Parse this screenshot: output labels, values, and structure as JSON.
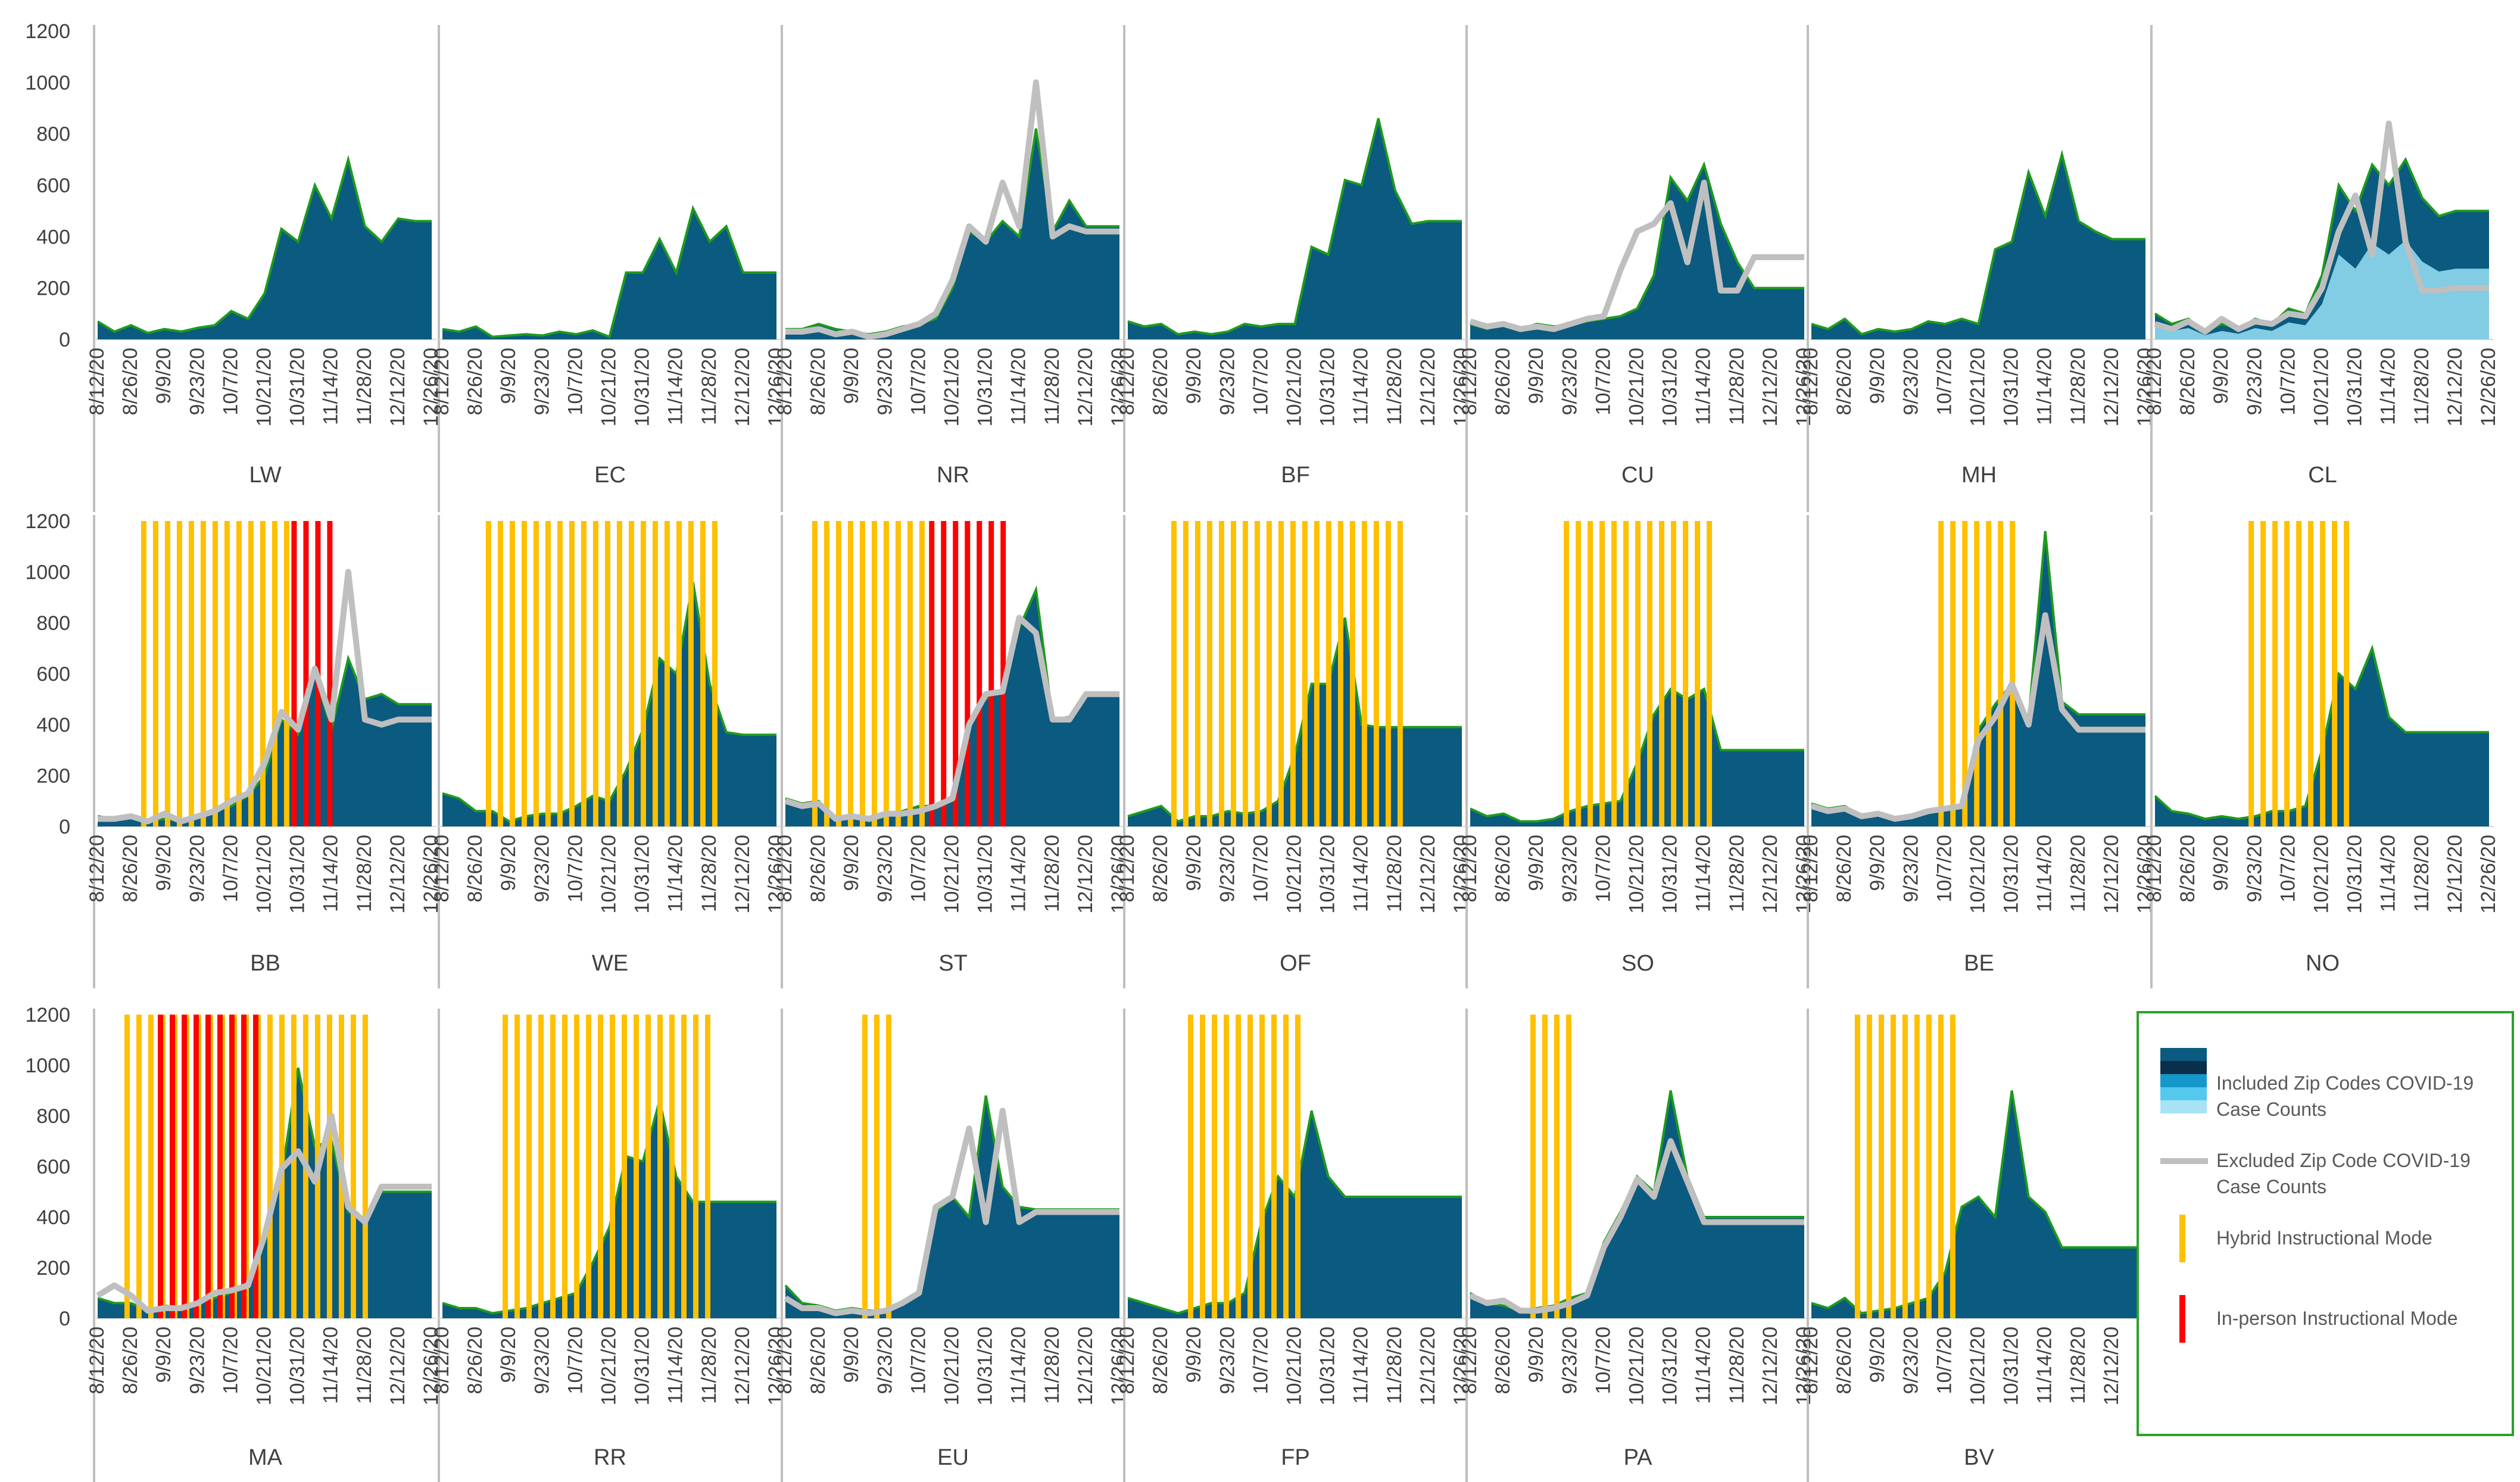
{
  "chart_data": {
    "type": "area",
    "title": "",
    "y_axis": {
      "ticks": [
        0,
        200,
        400,
        600,
        800,
        1000,
        1200
      ],
      "ylim": [
        0,
        1200
      ]
    },
    "x_axis": {
      "tick_labels": [
        "8/12/20",
        "8/26/20",
        "9/9/20",
        "9/23/20",
        "10/7/20",
        "10/21/20",
        "10/31/20",
        "11/14/20",
        "11/28/20",
        "12/12/20",
        "12/26/20"
      ]
    },
    "n_points": 21,
    "colors": {
      "included_area": "#0b5a7f",
      "included_outline": "#1e9a1e",
      "excluded_line": "#bfbfbf",
      "hybrid_mode": "#ffc000",
      "inperson_mode": "#ff0000",
      "cl_light_area": "#8fd8ef",
      "legend_border": "#2ca02c",
      "gridline_divider": "#bfbfbf"
    },
    "legend": {
      "position": "right",
      "entries": [
        {
          "key": "included",
          "label": "Included Zip Codes COVID-19 Case Counts"
        },
        {
          "key": "excluded",
          "label": "Excluded Zip Code COVID-19 Case Counts"
        },
        {
          "key": "hybrid",
          "label": "Hybrid Instructional Mode"
        },
        {
          "key": "inperson",
          "label": "In-person Instructional Mode"
        }
      ]
    },
    "panels": [
      {
        "label": "LW",
        "included": [
          70,
          30,
          55,
          25,
          40,
          30,
          45,
          55,
          110,
          80,
          180,
          430,
          380,
          600,
          470,
          700,
          440,
          380,
          470,
          460,
          460
        ],
        "excluded": null,
        "hybrid": null,
        "inperson": null
      },
      {
        "label": "EC",
        "included": [
          40,
          30,
          50,
          10,
          15,
          20,
          15,
          30,
          20,
          35,
          10,
          260,
          260,
          390,
          260,
          510,
          380,
          440,
          260,
          260,
          260
        ],
        "excluded": null,
        "hybrid": null,
        "inperson": null
      },
      {
        "label": "NR",
        "included": [
          40,
          40,
          60,
          40,
          30,
          20,
          30,
          50,
          60,
          80,
          200,
          420,
          380,
          460,
          400,
          820,
          420,
          540,
          440,
          440,
          440
        ],
        "excluded": [
          30,
          30,
          40,
          20,
          30,
          10,
          20,
          40,
          60,
          100,
          230,
          440,
          380,
          610,
          440,
          1000,
          400,
          440,
          420,
          420,
          420
        ],
        "hybrid": null,
        "inperson": null
      },
      {
        "label": "BF",
        "included": [
          70,
          50,
          60,
          20,
          30,
          20,
          30,
          60,
          50,
          60,
          60,
          360,
          330,
          620,
          600,
          860,
          580,
          450,
          460,
          460,
          460
        ],
        "excluded": null,
        "hybrid": null,
        "inperson": null
      },
      {
        "label": "CU",
        "included": [
          60,
          40,
          60,
          40,
          60,
          50,
          60,
          70,
          80,
          90,
          120,
          250,
          630,
          540,
          680,
          450,
          300,
          200,
          200,
          200,
          200
        ],
        "excluded": [
          70,
          50,
          60,
          40,
          50,
          40,
          60,
          80,
          90,
          270,
          420,
          450,
          530,
          300,
          610,
          190,
          190,
          320,
          320,
          320,
          320
        ],
        "hybrid": null,
        "inperson": null
      },
      {
        "label": "MH",
        "included": [
          60,
          40,
          80,
          20,
          40,
          30,
          40,
          70,
          60,
          80,
          60,
          350,
          380,
          650,
          480,
          720,
          460,
          420,
          390,
          390,
          390
        ],
        "excluded": null,
        "hybrid": null,
        "inperson": null
      },
      {
        "label": "CL",
        "included": [
          100,
          60,
          80,
          30,
          60,
          40,
          80,
          60,
          120,
          100,
          250,
          600,
          500,
          680,
          600,
          700,
          550,
          480,
          500,
          500,
          500
        ],
        "excluded": [
          60,
          40,
          70,
          30,
          80,
          40,
          70,
          60,
          100,
          90,
          200,
          420,
          560,
          330,
          840,
          380,
          190,
          190,
          200,
          200,
          200
        ],
        "hybrid": null,
        "inperson": null
      },
      {
        "label": "BB",
        "included": [
          40,
          30,
          40,
          20,
          30,
          20,
          40,
          60,
          80,
          120,
          200,
          420,
          360,
          600,
          380,
          660,
          500,
          520,
          480,
          480,
          480
        ],
        "excluded": [
          30,
          30,
          40,
          20,
          50,
          20,
          40,
          60,
          100,
          130,
          250,
          450,
          380,
          620,
          420,
          1000,
          420,
          400,
          420,
          420,
          420
        ],
        "hybrid": [
          3,
          11
        ],
        "inperson": [
          12,
          14
        ]
      },
      {
        "label": "WE",
        "included": [
          130,
          110,
          60,
          60,
          20,
          40,
          50,
          50,
          80,
          120,
          100,
          220,
          380,
          660,
          600,
          960,
          560,
          370,
          360,
          360,
          360
        ],
        "excluded": null,
        "hybrid": [
          3,
          16
        ],
        "inperson": null
      },
      {
        "label": "ST",
        "included": [
          110,
          90,
          100,
          30,
          40,
          20,
          40,
          60,
          80,
          80,
          120,
          420,
          500,
          540,
          780,
          930,
          420,
          430,
          520,
          520,
          520
        ],
        "excluded": [
          100,
          80,
          90,
          30,
          40,
          30,
          50,
          50,
          60,
          80,
          110,
          400,
          520,
          530,
          820,
          760,
          420,
          420,
          520,
          520,
          520
        ],
        "hybrid": [
          2,
          8
        ],
        "inperson": [
          9,
          13
        ]
      },
      {
        "label": "OF",
        "included": [
          40,
          60,
          80,
          20,
          40,
          40,
          60,
          50,
          60,
          100,
          280,
          560,
          560,
          820,
          400,
          390,
          390,
          390,
          390,
          390,
          390
        ],
        "excluded": null,
        "hybrid": [
          3,
          16
        ],
        "inperson": null
      },
      {
        "label": "SO",
        "included": [
          70,
          40,
          50,
          20,
          20,
          30,
          60,
          80,
          90,
          100,
          250,
          440,
          540,
          500,
          540,
          300,
          300,
          300,
          300,
          300,
          300
        ],
        "excluded": null,
        "hybrid": [
          6,
          14
        ],
        "inperson": null
      },
      {
        "label": "BE",
        "included": [
          90,
          70,
          80,
          40,
          50,
          30,
          40,
          60,
          70,
          80,
          380,
          480,
          560,
          420,
          1160,
          490,
          440,
          440,
          440,
          440,
          440
        ],
        "excluded": [
          80,
          60,
          70,
          40,
          50,
          30,
          40,
          60,
          70,
          80,
          340,
          430,
          560,
          400,
          830,
          460,
          380,
          380,
          380,
          380,
          380
        ],
        "hybrid": [
          8,
          12
        ],
        "inperson": null
      },
      {
        "label": "NO",
        "included": [
          120,
          60,
          50,
          30,
          40,
          30,
          40,
          60,
          60,
          80,
          300,
          600,
          540,
          700,
          430,
          370,
          370,
          370,
          370,
          370,
          370
        ],
        "excluded": null,
        "hybrid": [
          6,
          11
        ],
        "inperson": null
      },
      {
        "label": "MA",
        "included": [
          80,
          60,
          60,
          30,
          50,
          40,
          60,
          80,
          100,
          130,
          300,
          560,
          990,
          680,
          700,
          420,
          390,
          500,
          500,
          500,
          500
        ],
        "excluded": [
          90,
          130,
          90,
          30,
          40,
          40,
          60,
          100,
          110,
          130,
          330,
          590,
          660,
          540,
          800,
          440,
          380,
          520,
          520,
          520,
          520
        ],
        "hybrid": [
          2,
          16
        ],
        "inperson": [
          4,
          9
        ]
      },
      {
        "label": "RR",
        "included": [
          60,
          40,
          40,
          20,
          30,
          40,
          60,
          80,
          100,
          220,
          360,
          640,
          620,
          860,
          560,
          460,
          460,
          460,
          460,
          460,
          460
        ],
        "excluded": null,
        "hybrid": [
          4,
          16
        ],
        "inperson": null
      },
      {
        "label": "EU",
        "included": [
          130,
          60,
          50,
          30,
          40,
          30,
          30,
          60,
          100,
          420,
          480,
          400,
          880,
          520,
          440,
          430,
          430,
          430,
          430,
          430,
          430
        ],
        "excluded": [
          80,
          40,
          40,
          20,
          30,
          20,
          30,
          60,
          100,
          440,
          480,
          750,
          380,
          820,
          380,
          420,
          420,
          420,
          420,
          420,
          420
        ],
        "hybrid": [
          5,
          6
        ],
        "inperson": null
      },
      {
        "label": "FP",
        "included": [
          80,
          60,
          40,
          20,
          40,
          60,
          60,
          100,
          380,
          560,
          480,
          820,
          560,
          480,
          480,
          480,
          480,
          480,
          480,
          480,
          480
        ],
        "excluded": null,
        "hybrid": [
          4,
          10
        ],
        "inperson": null
      },
      {
        "label": "PA",
        "included": [
          100,
          60,
          50,
          30,
          40,
          50,
          80,
          100,
          300,
          420,
          560,
          500,
          900,
          560,
          400,
          400,
          400,
          400,
          400,
          400,
          400
        ],
        "excluded": [
          90,
          60,
          70,
          30,
          30,
          40,
          60,
          90,
          280,
          400,
          550,
          480,
          700,
          540,
          380,
          380,
          380,
          380,
          380,
          380,
          380
        ],
        "hybrid": [
          4,
          6
        ],
        "inperson": null
      },
      {
        "label": "BV",
        "included": [
          60,
          40,
          80,
          20,
          30,
          40,
          60,
          80,
          180,
          440,
          480,
          400,
          900,
          480,
          420,
          280,
          280,
          280,
          280,
          280,
          280
        ],
        "excluded": null,
        "hybrid": [
          3,
          8
        ],
        "inperson": null
      }
    ]
  }
}
